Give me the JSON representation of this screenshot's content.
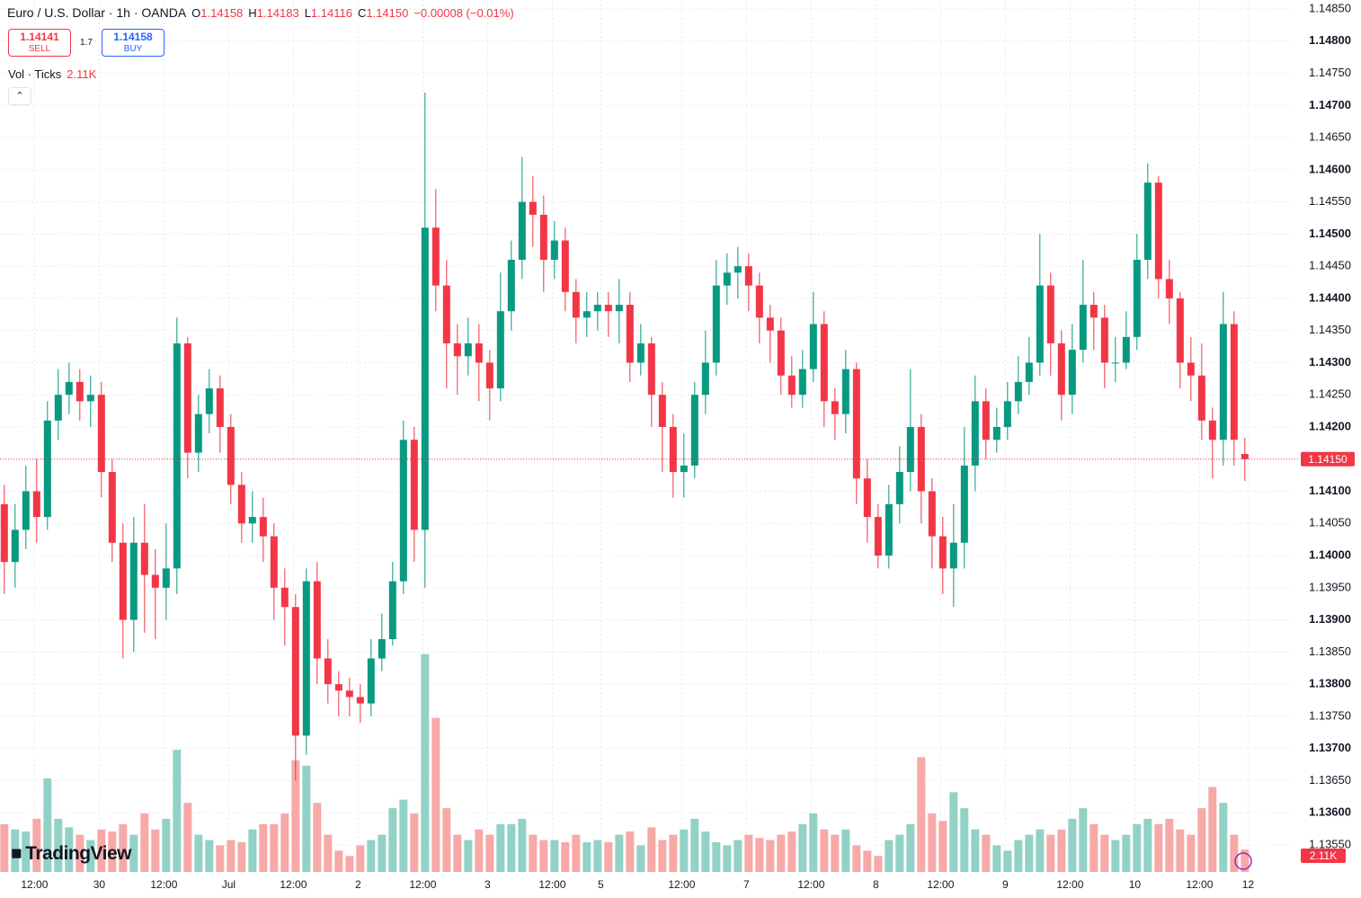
{
  "header": {
    "symbol": "Euro / U.S. Dollar · 1h · OANDA",
    "ohlc": [
      {
        "key": "O",
        "value": "1.14158"
      },
      {
        "key": "H",
        "value": "1.14183"
      },
      {
        "key": "L",
        "value": "1.14116"
      },
      {
        "key": "C",
        "value": "1.14150"
      }
    ],
    "change": "−0.00008 (−0.01%)",
    "sell_price": "1.14141",
    "sell_label": "SELL",
    "spread": "1.7",
    "buy_price": "1.14158",
    "buy_label": "BUY",
    "volume_title": "Vol · Ticks",
    "volume_value": "2.11K"
  },
  "logo": "TradingView",
  "chart_data": {
    "type": "candlestick",
    "up_color": "#089981",
    "down_color": "#f23645",
    "volume_up_color": "#92d2c6",
    "volume_down_color": "#f7a9a8",
    "grid": true,
    "open": [
      1.1408,
      1.1399,
      1.1404,
      1.141,
      1.1406,
      1.1421,
      1.1425,
      1.1427,
      1.1424,
      1.1425,
      1.1413,
      1.1402,
      1.139,
      1.1402,
      1.1397,
      1.1395,
      1.1398,
      1.1433,
      1.1416,
      1.1422,
      1.1426,
      1.142,
      1.1411,
      1.1405,
      1.1406,
      1.1403,
      1.1395,
      1.1392,
      1.1372,
      1.1396,
      1.1384,
      1.138,
      1.1379,
      1.1378,
      1.1377,
      1.1384,
      1.1387,
      1.1396,
      1.1418,
      1.1404,
      1.1451,
      1.1442,
      1.1433,
      1.1431,
      1.1433,
      1.143,
      1.1426,
      1.1438,
      1.1446,
      1.1455,
      1.1453,
      1.1446,
      1.1449,
      1.1441,
      1.1437,
      1.1438,
      1.1439,
      1.1438,
      1.1439,
      1.143,
      1.1433,
      1.1425,
      1.142,
      1.1413,
      1.1414,
      1.1425,
      1.143,
      1.1442,
      1.1444,
      1.1445,
      1.1442,
      1.1437,
      1.1435,
      1.1428,
      1.1425,
      1.1429,
      1.1436,
      1.1424,
      1.1422,
      1.1429,
      1.1412,
      1.1406,
      1.14,
      1.1408,
      1.1413,
      1.142,
      1.141,
      1.1403,
      1.1398,
      1.1402,
      1.1414,
      1.1424,
      1.1418,
      1.142,
      1.1424,
      1.1427,
      1.143,
      1.1442,
      1.1433,
      1.1425,
      1.1432,
      1.1439,
      1.1437,
      1.143,
      1.143,
      1.1434,
      1.1446,
      1.1458,
      1.1443,
      1.144,
      1.143,
      1.1428,
      1.1421,
      1.1418,
      1.1436,
      1.14158
    ],
    "high": [
      1.1411,
      1.1408,
      1.1414,
      1.1415,
      1.1424,
      1.1429,
      1.143,
      1.1429,
      1.1428,
      1.1427,
      1.1415,
      1.1405,
      1.1406,
      1.1408,
      1.1401,
      1.1405,
      1.1437,
      1.1434,
      1.1425,
      1.1429,
      1.1428,
      1.1422,
      1.1413,
      1.141,
      1.1409,
      1.1405,
      1.1398,
      1.1394,
      1.1398,
      1.1399,
      1.1387,
      1.1382,
      1.1381,
      1.138,
      1.1387,
      1.1391,
      1.1399,
      1.1421,
      1.142,
      1.1472,
      1.1457,
      1.1446,
      1.1436,
      1.1437,
      1.1436,
      1.1432,
      1.1444,
      1.1449,
      1.1462,
      1.1459,
      1.1456,
      1.1452,
      1.1451,
      1.1443,
      1.1441,
      1.1441,
      1.1441,
      1.1443,
      1.1441,
      1.1436,
      1.1434,
      1.1427,
      1.1422,
      1.1419,
      1.1427,
      1.1435,
      1.1446,
      1.1447,
      1.1448,
      1.1447,
      1.1444,
      1.1439,
      1.1437,
      1.1431,
      1.1432,
      1.1441,
      1.1438,
      1.1426,
      1.1432,
      1.143,
      1.1415,
      1.1408,
      1.1411,
      1.1417,
      1.1429,
      1.1422,
      1.1412,
      1.1406,
      1.1408,
      1.142,
      1.1428,
      1.1426,
      1.1423,
      1.1427,
      1.1431,
      1.1434,
      1.145,
      1.1444,
      1.1435,
      1.1436,
      1.1446,
      1.1441,
      1.1439,
      1.1434,
      1.1438,
      1.145,
      1.1461,
      1.1459,
      1.1446,
      1.1441,
      1.1434,
      1.1433,
      1.1423,
      1.1441,
      1.1438,
      1.14183
    ],
    "low": [
      1.1394,
      1.1395,
      1.1401,
      1.1402,
      1.1404,
      1.1418,
      1.1422,
      1.1421,
      1.142,
      1.1409,
      1.1399,
      1.1384,
      1.1385,
      1.1388,
      1.1387,
      1.139,
      1.1394,
      1.1412,
      1.1413,
      1.1419,
      1.1416,
      1.1408,
      1.1402,
      1.1402,
      1.1399,
      1.139,
      1.1386,
      1.1365,
      1.1369,
      1.138,
      1.1377,
      1.1375,
      1.1375,
      1.1374,
      1.1375,
      1.1382,
      1.1386,
      1.1394,
      1.1399,
      1.1395,
      1.1438,
      1.1426,
      1.1425,
      1.1428,
      1.1424,
      1.1421,
      1.1424,
      1.1435,
      1.1443,
      1.1448,
      1.1441,
      1.1443,
      1.1438,
      1.1433,
      1.1434,
      1.1435,
      1.1434,
      1.1433,
      1.1427,
      1.1428,
      1.142,
      1.1413,
      1.1409,
      1.1409,
      1.1412,
      1.1422,
      1.1428,
      1.1439,
      1.144,
      1.1438,
      1.1433,
      1.143,
      1.1425,
      1.1423,
      1.1423,
      1.1427,
      1.142,
      1.1418,
      1.1419,
      1.1408,
      1.1402,
      1.1398,
      1.1398,
      1.1405,
      1.141,
      1.1405,
      1.1398,
      1.1394,
      1.1392,
      1.1398,
      1.141,
      1.1415,
      1.1416,
      1.1418,
      1.1422,
      1.1425,
      1.1428,
      1.1428,
      1.1421,
      1.1422,
      1.143,
      1.1432,
      1.1426,
      1.1427,
      1.1429,
      1.1432,
      1.1443,
      1.144,
      1.1436,
      1.1426,
      1.1424,
      1.1418,
      1.1412,
      1.1414,
      1.1414,
      1.14116
    ],
    "close": [
      1.1399,
      1.1404,
      1.141,
      1.1406,
      1.1421,
      1.1425,
      1.1427,
      1.1424,
      1.1425,
      1.1413,
      1.1402,
      1.139,
      1.1402,
      1.1397,
      1.1395,
      1.1398,
      1.1433,
      1.1416,
      1.1422,
      1.1426,
      1.142,
      1.1411,
      1.1405,
      1.1406,
      1.1403,
      1.1395,
      1.1392,
      1.1372,
      1.1396,
      1.1384,
      1.138,
      1.1379,
      1.1378,
      1.1377,
      1.1384,
      1.1387,
      1.1396,
      1.1418,
      1.1404,
      1.1451,
      1.1442,
      1.1433,
      1.1431,
      1.1433,
      1.143,
      1.1426,
      1.1438,
      1.1446,
      1.1455,
      1.1453,
      1.1446,
      1.1449,
      1.1441,
      1.1437,
      1.1438,
      1.1439,
      1.1438,
      1.1439,
      1.143,
      1.1433,
      1.1425,
      1.142,
      1.1413,
      1.1414,
      1.1425,
      1.143,
      1.1442,
      1.1444,
      1.1445,
      1.1442,
      1.1437,
      1.1435,
      1.1428,
      1.1425,
      1.1429,
      1.1436,
      1.1424,
      1.1422,
      1.1429,
      1.1412,
      1.1406,
      1.14,
      1.1408,
      1.1413,
      1.142,
      1.141,
      1.1403,
      1.1398,
      1.1402,
      1.1414,
      1.1424,
      1.1418,
      1.142,
      1.1424,
      1.1427,
      1.143,
      1.1442,
      1.1433,
      1.1425,
      1.1432,
      1.1439,
      1.1437,
      1.143,
      1.143,
      1.1434,
      1.1446,
      1.1458,
      1.1443,
      1.144,
      1.143,
      1.1428,
      1.1421,
      1.1418,
      1.1436,
      1.1418,
      1.1415
    ],
    "volume": [
      4500,
      4000,
      3800,
      5000,
      8800,
      5000,
      4200,
      3500,
      3000,
      4000,
      3800,
      4500,
      3500,
      5500,
      4000,
      5000,
      11500,
      6500,
      3500,
      3000,
      2500,
      3000,
      2800,
      4000,
      4500,
      4500,
      5500,
      10500,
      10000,
      6500,
      3500,
      2000,
      1500,
      2500,
      3000,
      3500,
      6000,
      6800,
      5500,
      20500,
      14500,
      6000,
      3500,
      3000,
      4000,
      3500,
      4500,
      4500,
      5000,
      3500,
      3000,
      3000,
      2800,
      3500,
      2800,
      3000,
      2800,
      3500,
      3800,
      2500,
      4200,
      3000,
      3500,
      4000,
      5000,
      3800,
      2800,
      2500,
      3000,
      3500,
      3200,
      3000,
      3500,
      3800,
      4500,
      5500,
      4000,
      3500,
      4000,
      2500,
      2000,
      1500,
      3000,
      3500,
      4500,
      10800,
      5500,
      4800,
      7500,
      6000,
      4000,
      3500,
      2500,
      2000,
      3000,
      3500,
      4000,
      3500,
      4000,
      5000,
      6000,
      4500,
      3500,
      3000,
      3500,
      4500,
      5000,
      4500,
      5000,
      4000,
      3500,
      6000,
      8000,
      6500,
      3500,
      2110
    ],
    "volume_label": "2.11K",
    "vlim": [
      0,
      22000
    ],
    "ylim": [
      1.13508,
      1.14864
    ],
    "yticks": [
      {
        "value": 1.1355,
        "label": "1.13550"
      },
      {
        "value": 1.136,
        "label": "1.13600"
      },
      {
        "value": 1.1365,
        "label": "1.13650"
      },
      {
        "value": 1.137,
        "label": "1.13700"
      },
      {
        "value": 1.1375,
        "label": "1.13750"
      },
      {
        "value": 1.138,
        "label": "1.13800"
      },
      {
        "value": 1.1385,
        "label": "1.13850"
      },
      {
        "value": 1.139,
        "label": "1.13900"
      },
      {
        "value": 1.1395,
        "label": "1.13950"
      },
      {
        "value": 1.14,
        "label": "1.14000"
      },
      {
        "value": 1.1405,
        "label": "1.14050"
      },
      {
        "value": 1.141,
        "label": "1.14100"
      },
      {
        "value": 1.1415,
        "label": "1.14150"
      },
      {
        "value": 1.142,
        "label": "1.14200"
      },
      {
        "value": 1.1425,
        "label": "1.14250"
      },
      {
        "value": 1.143,
        "label": "1.14300"
      },
      {
        "value": 1.1435,
        "label": "1.14350"
      },
      {
        "value": 1.144,
        "label": "1.14400"
      },
      {
        "value": 1.1445,
        "label": "1.14450"
      },
      {
        "value": 1.145,
        "label": "1.14500"
      },
      {
        "value": 1.1455,
        "label": "1.14550"
      },
      {
        "value": 1.146,
        "label": "1.14600"
      },
      {
        "value": 1.1465,
        "label": "1.14650"
      },
      {
        "value": 1.147,
        "label": "1.14700"
      },
      {
        "value": 1.1475,
        "label": "1.14750"
      },
      {
        "value": 1.148,
        "label": "1.14800"
      },
      {
        "value": 1.1485,
        "label": "1.14850"
      }
    ],
    "last_price": {
      "value": 1.1415,
      "label": "1.14150"
    },
    "xlim": [
      -0.4,
      119.6
    ],
    "xticks": [
      {
        "value": 2.8,
        "label": "12:00"
      },
      {
        "value": 8.8,
        "label": "30"
      },
      {
        "value": 14.8,
        "label": "12:00"
      },
      {
        "value": 20.8,
        "label": "Jul"
      },
      {
        "value": 26.8,
        "label": "12:00"
      },
      {
        "value": 32.8,
        "label": "2"
      },
      {
        "value": 38.8,
        "label": "12:00"
      },
      {
        "value": 44.8,
        "label": "3"
      },
      {
        "value": 50.8,
        "label": "12:00"
      },
      {
        "value": 55.3,
        "label": "5"
      },
      {
        "value": 62.8,
        "label": "12:00"
      },
      {
        "value": 68.8,
        "label": "7"
      },
      {
        "value": 74.8,
        "label": "12:00"
      },
      {
        "value": 80.8,
        "label": "8"
      },
      {
        "value": 86.8,
        "label": "12:00"
      },
      {
        "value": 92.8,
        "label": "9"
      },
      {
        "value": 98.8,
        "label": "12:00"
      },
      {
        "value": 104.8,
        "label": "10"
      },
      {
        "value": 110.8,
        "label": "12:00"
      },
      {
        "value": 115.3,
        "label": "12"
      }
    ]
  }
}
